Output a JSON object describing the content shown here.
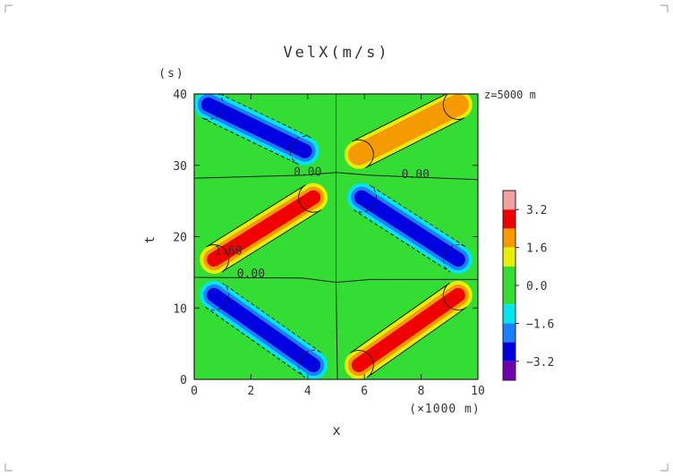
{
  "chart_data": {
    "type": "heatmap",
    "title": "VelX(m/s)",
    "annotation": "z=5000 m",
    "xlabel": "x",
    "x_unit": "(×1000 m)",
    "ylabel": "t",
    "y_unit": "(s)",
    "xlim": [
      0,
      10
    ],
    "ylim": [
      0,
      40
    ],
    "x_ticks": [
      "0",
      "2",
      "4",
      "6",
      "8",
      "10"
    ],
    "y_ticks": [
      "0",
      "10",
      "20",
      "30",
      "40"
    ],
    "contour_labels": [
      {
        "text": "0.00",
        "x": 4.0,
        "y": 28.5
      },
      {
        "text": "0.00",
        "x": 7.8,
        "y": 28.2
      },
      {
        "text": "1.60",
        "x": 1.2,
        "y": 17.5
      },
      {
        "text": "0.00",
        "x": 2.0,
        "y": 14.3
      }
    ],
    "colorbar": {
      "tick_labels": [
        "3.2",
        "1.6",
        "0.0",
        "−1.6",
        "−3.2"
      ],
      "tick_values": [
        3.2,
        1.6,
        0.0,
        -1.6,
        -3.2
      ],
      "levels": [
        {
          "from": 3.2,
          "to": 4.0,
          "color": "#f4a0a0"
        },
        {
          "from": 2.4,
          "to": 3.2,
          "color": "#f00000"
        },
        {
          "from": 1.6,
          "to": 2.4,
          "color": "#f59b00"
        },
        {
          "from": 0.8,
          "to": 1.6,
          "color": "#e6f000"
        },
        {
          "from": -0.8,
          "to": 0.8,
          "color": "#33dd33"
        },
        {
          "from": -1.6,
          "to": -0.8,
          "color": "#00e6f0"
        },
        {
          "from": -2.4,
          "to": -1.6,
          "color": "#1a80ff"
        },
        {
          "from": -3.2,
          "to": -2.4,
          "color": "#0000e0"
        },
        {
          "from": -4.0,
          "to": -3.2,
          "color": "#7000b0"
        }
      ]
    },
    "features": [
      {
        "sign": "negative",
        "peak": -2.8,
        "x_start": 0.5,
        "t_start": 38.5,
        "x_end": 3.9,
        "t_end": 32.0
      },
      {
        "sign": "positive",
        "peak": 2.2,
        "x_start": 5.8,
        "t_start": 31.5,
        "x_end": 9.3,
        "t_end": 38.5
      },
      {
        "sign": "positive",
        "peak": 2.8,
        "x_start": 0.7,
        "t_start": 16.8,
        "x_end": 4.2,
        "t_end": 25.5
      },
      {
        "sign": "negative",
        "peak": -3.0,
        "x_start": 5.9,
        "t_start": 25.5,
        "x_end": 9.3,
        "t_end": 16.8
      },
      {
        "sign": "negative",
        "peak": -3.0,
        "x_start": 0.7,
        "t_start": 11.8,
        "x_end": 4.2,
        "t_end": 2.0
      },
      {
        "sign": "positive",
        "peak": 3.0,
        "x_start": 5.8,
        "t_start": 2.0,
        "x_end": 9.3,
        "t_end": 11.8
      }
    ]
  }
}
